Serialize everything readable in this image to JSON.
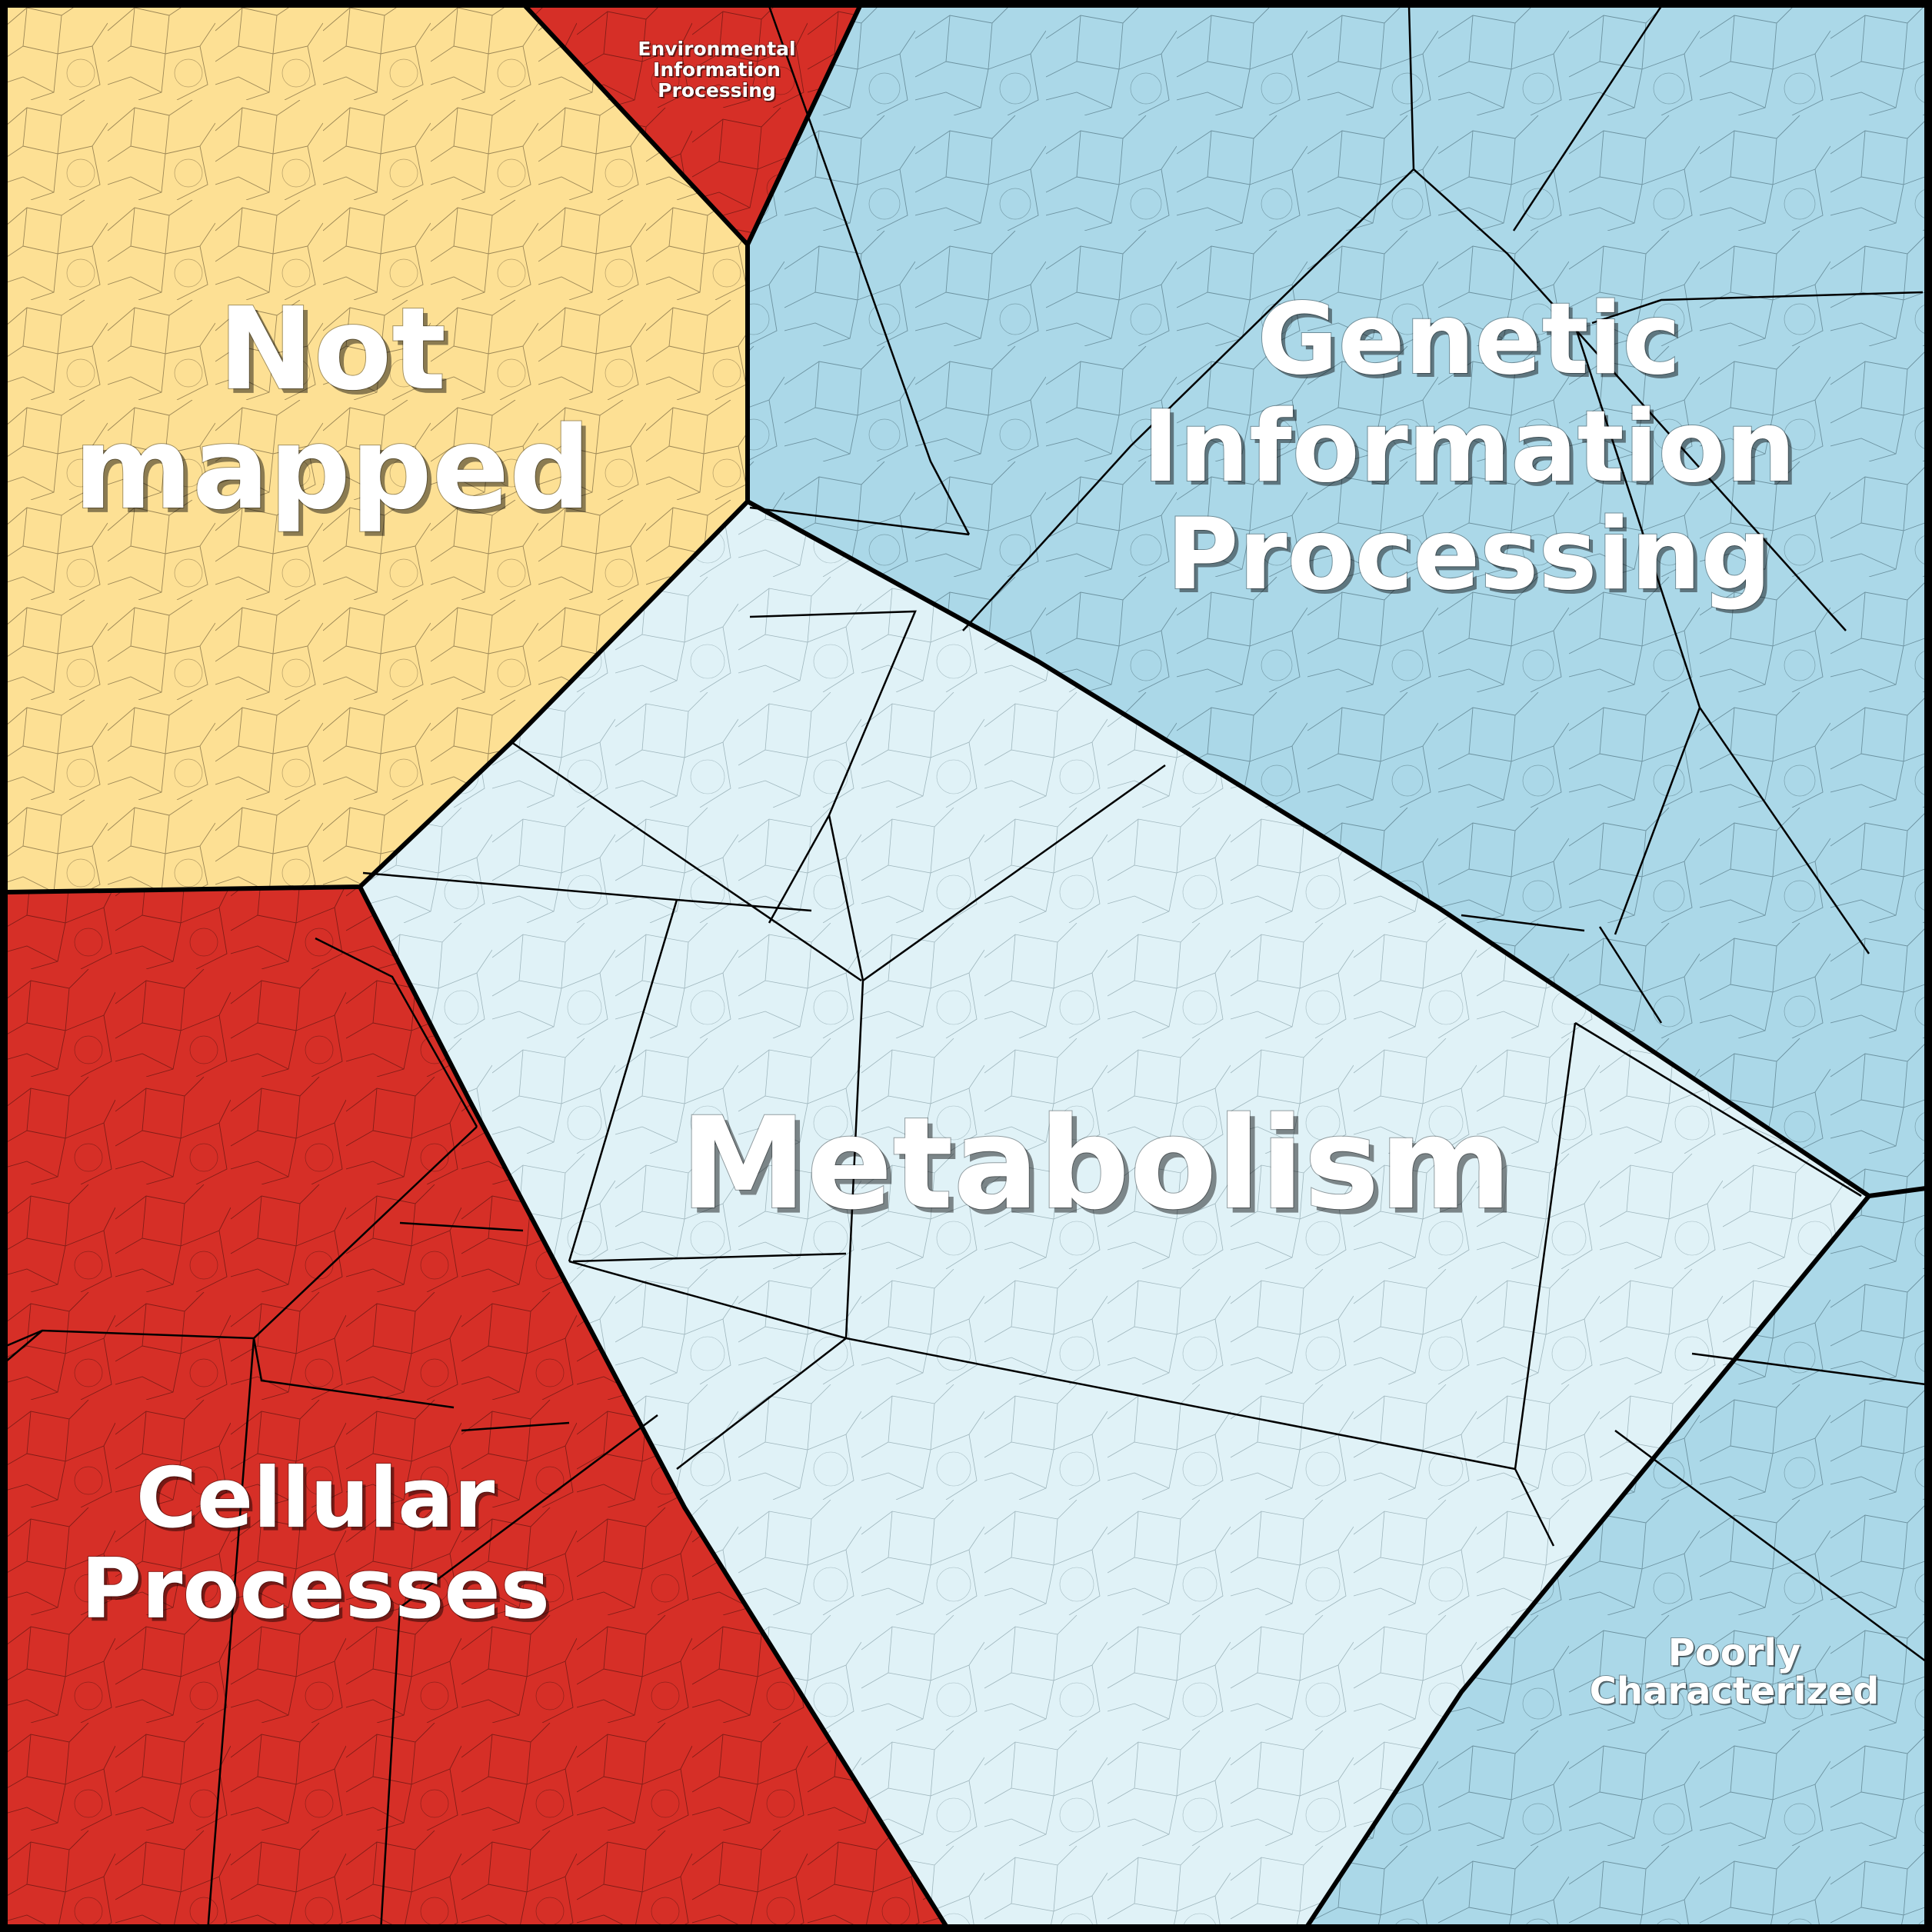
{
  "diagram": {
    "type": "voronoi-treemap",
    "categories": [
      {
        "id": "not-mapped",
        "name_lines": [
          "Not",
          "mapped"
        ],
        "color": "#FDE094",
        "large_label": true
      },
      {
        "id": "environmental-information-processing",
        "name_lines": [
          "Environmental",
          "Information",
          "Processing"
        ],
        "color": "#D62F27",
        "large_label": false
      },
      {
        "id": "genetic-information-processing",
        "name_lines": [
          "Genetic",
          "Information",
          "Processing"
        ],
        "color": "#ABD8E8",
        "large_label": true
      },
      {
        "id": "metabolism",
        "name_lines": [
          "Metabolism"
        ],
        "color": "#E0F2F7",
        "large_label": true
      },
      {
        "id": "cellular-processes",
        "name_lines": [
          "Cellular",
          "Processes"
        ],
        "color": "#D62F27",
        "large_label": true
      },
      {
        "id": "poorly-characterized",
        "name_lines": [
          "Poorly",
          "Characterized"
        ],
        "color": "#ABD8E8",
        "large_label": false
      }
    ],
    "border_color": "#000000",
    "cell_line_color": "#333333"
  }
}
